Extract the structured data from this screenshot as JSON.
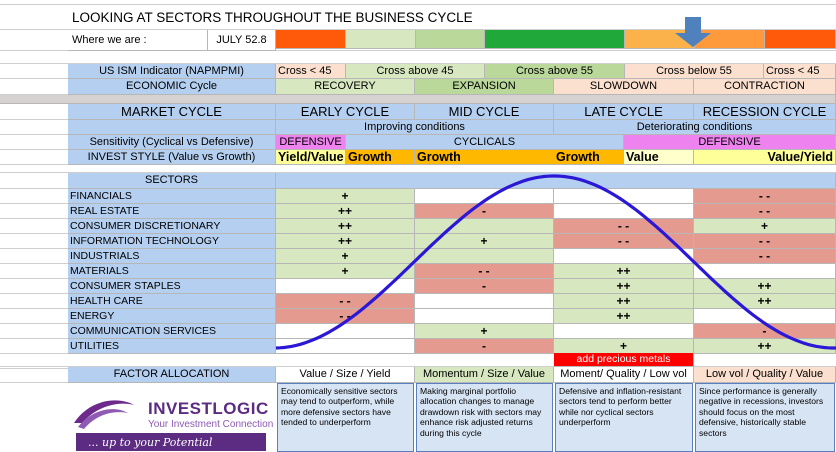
{
  "title": "LOOKING AT SECTORS THROUGHOUT THE BUSINESS CYCLE",
  "where_label": "Where we are :",
  "where_value": "JULY 52.8",
  "indicator_bar_colors": [
    "#ff5a0a",
    "#d7e8c1",
    "#b9d89a",
    "#21a83a",
    "#fbb24a",
    "#ff9a3c",
    "#ff5a0a"
  ],
  "arrow_color": "#4f81bd",
  "ism": {
    "label": "US ISM Indicator (NAPMPMI)",
    "cross_lt_45_a": "Cross < 45",
    "cross_above_45": "Cross above 45",
    "cross_above_55": "Cross above 55",
    "cross_below_55": "Cross below 55",
    "cross_lt_45_b": "Cross < 45"
  },
  "economic": {
    "label": "ECONOMIC Cycle",
    "recovery": "RECOVERY",
    "expansion": "EXPANSION",
    "slowdown": "SLOWDOWN",
    "contraction": "CONTRACTION"
  },
  "market": {
    "label": "MARKET CYCLE",
    "early": "EARLY CYCLE",
    "mid": "MID CYCLE",
    "late": "LATE CYCLE",
    "recession": "RECESSION CYCLE"
  },
  "conditions": {
    "improving": "Improving conditions",
    "deteriorating": "Deteriorating conditions"
  },
  "sensitivity": {
    "label": "Sensitivity (Cyclical vs Defensive)",
    "defensive_a": "DEFENSIVE",
    "cyclicals": "CYCLICALS",
    "defensive_b": "DEFENSIVE"
  },
  "invest_style": {
    "label": "INVEST STYLE (Value vs Growth)",
    "yield_value_a": "Yield/Value",
    "growth_1": "Growth",
    "growth_2": "Growth",
    "growth_3": "Growth",
    "value": "Value",
    "value_yield": "Value/Yield"
  },
  "sectors_header": "SECTORS",
  "sectors": [
    {
      "name": "FINANCIALS",
      "early": "+",
      "mid": "",
      "late": "",
      "recession": "- -"
    },
    {
      "name": "REAL ESTATE",
      "early": "++",
      "mid": "-",
      "late": "",
      "recession": "- -"
    },
    {
      "name": "CONSUMER DISCRETIONARY",
      "early": "++",
      "mid": "",
      "late": "- -",
      "recession": "+"
    },
    {
      "name": "INFORMATION TECHNOLOGY",
      "early": "++",
      "mid": "+",
      "late": "- -",
      "recession": "- -"
    },
    {
      "name": "INDUSTRIALS",
      "early": "+",
      "mid": "",
      "late": "",
      "recession": "- -"
    },
    {
      "name": "MATERIALS",
      "early": "+",
      "mid": "- -",
      "late": "++",
      "recession": ""
    },
    {
      "name": "CONSUMER STAPLES",
      "early": "",
      "mid": "-",
      "late": "++",
      "recession": "++"
    },
    {
      "name": "HEALTH CARE",
      "early": "- -",
      "mid": "",
      "late": "++",
      "recession": "++"
    },
    {
      "name": "ENERGY",
      "early": "- -",
      "mid": "",
      "late": "++",
      "recession": ""
    },
    {
      "name": "COMMUNICATION SERVICES",
      "early": "",
      "mid": "+",
      "late": "",
      "recession": "-"
    },
    {
      "name": "UTILITIES",
      "early": "",
      "mid": "-",
      "late": "+",
      "recession": "++"
    }
  ],
  "precious_metals": "add precious metals",
  "factor": {
    "label": "FACTOR ALLOCATION",
    "early": "Value / Size / Yield",
    "mid": "Momentum / Size / Value",
    "late": "Moment/ Quality / Low vol",
    "recession": "Low vol / Quality / Value"
  },
  "descriptions": {
    "early": "Economically sensitive sectors may tend to outperform, while more defensive sectors have tended to underperform",
    "mid": "Making marginal portfolio allocation changes to manage drawdown risk with sectors may enhance risk adjusted returns during this cycle",
    "late": "Defensive and inflation-resistant sectors tend to perform better while nor cyclical sectors underperform",
    "recession": "Since performance is generally negative in recessions, investors should focus on the most defensive, historically stable sectors"
  },
  "logo": {
    "brand": "INVESTLOGIC",
    "tagline": "Your Investment Connection",
    "slogan": "... up to your Potential"
  },
  "colors": {
    "blue_header": "#b4cff0",
    "green": "#d7e8c1",
    "peach": "#fbe0cf",
    "red": "#e49a8e",
    "defensive": "#ee82ee",
    "growth": "#ffb800",
    "value_yellow": "#ffff99",
    "curve": "#2b18d6"
  }
}
